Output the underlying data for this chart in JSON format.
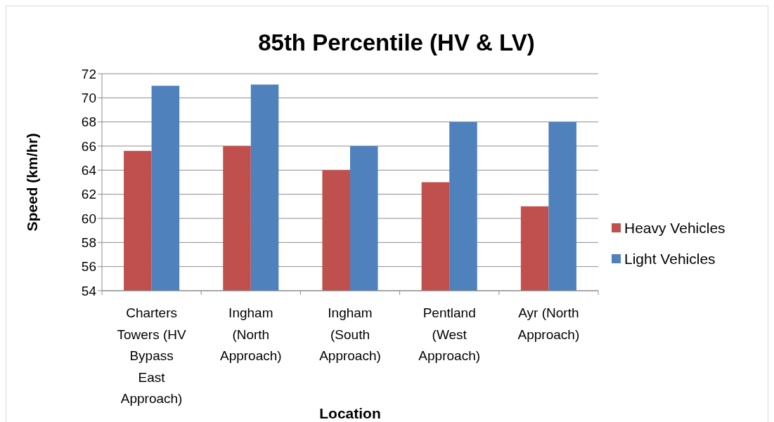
{
  "chart_data": {
    "type": "bar",
    "title": "85th Percentile (HV & LV)",
    "xlabel": "Location",
    "ylabel": "Speed (km/hr)",
    "categories": [
      "Charters Towers (HV Bypass East Approach)",
      "Ingham (North Approach)",
      "Ingham (South Approach)",
      "Pentland (West Approach)",
      "Ayr (North Approach)"
    ],
    "series": [
      {
        "name": "Heavy Vehicles",
        "color": "#c0504d",
        "values": [
          65.6,
          66,
          64,
          63,
          61
        ]
      },
      {
        "name": "Light Vehicles",
        "color": "#4f81bd",
        "values": [
          71.0,
          71.1,
          66,
          68,
          68
        ]
      }
    ],
    "ylim": [
      54,
      72
    ],
    "yticks": [
      54,
      56,
      58,
      60,
      62,
      64,
      66,
      68,
      70,
      72
    ],
    "grid": "y",
    "legend": "right"
  }
}
